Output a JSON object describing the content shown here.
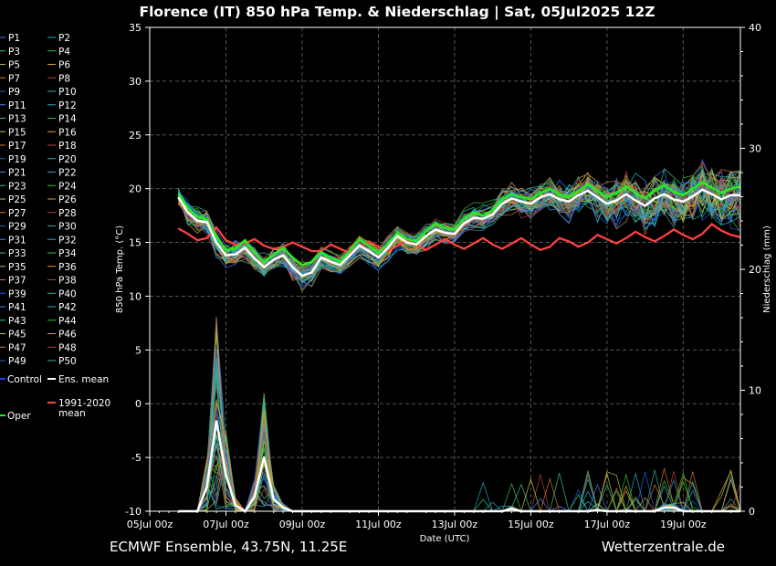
{
  "footer": {
    "left": "ECMWF Ensemble, 43.75N, 11.25E",
    "right": "Wetterzentrale.de"
  },
  "chart_data": {
    "type": "line",
    "title": "Florence  (IT)  850 hPa Temp. & Niederschlag | Sat, 05Jul2025 12Z",
    "xlabel": "Date (UTC)",
    "ylabel": "850 hPa Temp. (°C)",
    "y2label": "Niederschlag (mm)",
    "ylim": [
      -10,
      35
    ],
    "y2lim": [
      0,
      40
    ],
    "yticks": [
      -10,
      -5,
      0,
      5,
      10,
      15,
      20,
      25,
      30,
      35
    ],
    "y2ticks": [
      0,
      10,
      20,
      30,
      40
    ],
    "xlim": [
      0,
      15.5
    ],
    "xticks": [
      {
        "x": 0,
        "label": "05Jul 00z"
      },
      {
        "x": 2,
        "label": "07Jul 00z"
      },
      {
        "x": 4,
        "label": "09Jul 00z"
      },
      {
        "x": 6,
        "label": "11Jul 00z"
      },
      {
        "x": 8,
        "label": "13Jul 00z"
      },
      {
        "x": 10,
        "label": "15Jul 00z"
      },
      {
        "x": 12,
        "label": "17Jul 00z"
      },
      {
        "x": 14,
        "label": "19Jul 00z"
      }
    ],
    "grid": true,
    "legend_position": "left",
    "legend": [
      "P1",
      "P2",
      "P3",
      "P4",
      "P5",
      "P6",
      "P7",
      "P8",
      "P9",
      "P10",
      "P11",
      "P12",
      "P13",
      "P14",
      "P15",
      "P16",
      "P17",
      "P18",
      "P19",
      "P20",
      "P21",
      "P22",
      "P23",
      "P24",
      "P25",
      "P26",
      "P27",
      "P28",
      "P29",
      "P30",
      "P31",
      "P32",
      "P33",
      "P34",
      "P35",
      "P36",
      "P37",
      "P38",
      "P39",
      "P40",
      "P41",
      "P42",
      "P43",
      "P44",
      "P45",
      "P46",
      "P47",
      "P48",
      "P49",
      "P50"
    ],
    "special_legend": {
      "control": "Control",
      "ens_mean": "Ens. mean",
      "clim_mean": "1991-2020 mean",
      "oper": "Oper"
    },
    "colors": {
      "control": "#1a3cff",
      "ens_mean": "#ffffff",
      "clim_mean": "#ff4040",
      "oper": "#22ee22",
      "members": [
        "#4a7dff",
        "#28a8c8",
        "#2ec98a",
        "#38c038",
        "#c8c040",
        "#e0a030",
        "#d07838",
        "#c04040",
        "#2060e0",
        "#30b0b0"
      ]
    },
    "series_time": [
      0.75,
      1,
      1.25,
      1.5,
      1.75,
      2,
      2.25,
      2.5,
      2.75,
      3,
      3.25,
      3.5,
      3.75,
      4,
      4.25,
      4.5,
      4.75,
      5,
      5.25,
      5.5,
      5.75,
      6,
      6.25,
      6.5,
      6.75,
      7,
      7.25,
      7.5,
      7.75,
      8,
      8.25,
      8.5,
      8.75,
      9,
      9.25,
      9.5,
      9.75,
      10,
      10.25,
      10.5,
      10.75,
      11,
      11.25,
      11.5,
      11.75,
      12,
      12.25,
      12.5,
      12.75,
      13,
      13.25,
      13.5,
      13.75,
      14,
      14.25,
      14.5,
      14.75,
      15,
      15.25,
      15.5
    ],
    "series": [
      {
        "name": "Ens. mean",
        "values": [
          19.2,
          17.8,
          17.0,
          16.9,
          15.0,
          13.8,
          13.9,
          14.5,
          13.5,
          12.7,
          13.4,
          13.8,
          12.7,
          11.9,
          12.2,
          13.6,
          13.2,
          12.9,
          13.8,
          14.7,
          14.2,
          13.6,
          14.5,
          15.6,
          15.0,
          14.8,
          15.6,
          16.2,
          15.9,
          15.8,
          16.8,
          17.3,
          17.2,
          17.6,
          18.6,
          19.1,
          18.8,
          18.6,
          19.2,
          19.5,
          19.0,
          18.8,
          19.4,
          19.8,
          19.2,
          18.6,
          18.9,
          19.5,
          18.9,
          18.4,
          19.1,
          19.5,
          19.0,
          18.8,
          19.3,
          19.9,
          19.5,
          19.0,
          19.4,
          19.4
        ]
      },
      {
        "name": "Oper",
        "values": [
          19.5,
          18.2,
          17.4,
          17.1,
          15.5,
          14.3,
          14.4,
          15.2,
          14.0,
          13.2,
          13.8,
          14.5,
          13.6,
          12.9,
          13.2,
          14.1,
          13.6,
          13.2,
          14.2,
          15.3,
          14.7,
          14.0,
          14.9,
          15.9,
          15.3,
          15.1,
          16.0,
          16.8,
          16.3,
          16.2,
          17.2,
          17.8,
          17.5,
          18.0,
          19.0,
          19.5,
          19.2,
          19.0,
          19.6,
          20.0,
          19.4,
          19.2,
          19.8,
          20.4,
          19.8,
          19.2,
          19.6,
          20.2,
          19.6,
          19.1,
          19.8,
          20.3,
          19.7,
          19.4,
          20.0,
          20.6,
          20.1,
          19.6,
          20.0,
          20.2
        ]
      },
      {
        "name": "1991-2020 mean",
        "values": [
          16.3,
          15.8,
          15.2,
          15.4,
          16.4,
          15.2,
          14.8,
          14.9,
          15.3,
          14.7,
          14.4,
          14.6,
          15.0,
          14.6,
          14.2,
          14.2,
          14.8,
          14.4,
          14.0,
          14.6,
          15.1,
          14.6,
          14.2,
          14.7,
          15.2,
          14.7,
          14.3,
          14.8,
          15.3,
          14.8,
          14.4,
          14.9,
          15.4,
          14.8,
          14.4,
          14.9,
          15.4,
          14.8,
          14.3,
          14.6,
          15.4,
          15.1,
          14.6,
          15.0,
          15.7,
          15.3,
          14.9,
          15.4,
          16.0,
          15.5,
          15.1,
          15.6,
          16.2,
          15.7,
          15.3,
          15.8,
          16.7,
          16.1,
          15.7,
          15.5
        ]
      }
    ],
    "precip_series_name": "Niederschlag",
    "precip_mean": [
      0,
      0,
      0,
      2.0,
      7.5,
      3.0,
      0.5,
      0,
      1.2,
      4.5,
      1.0,
      0.3,
      0,
      0,
      0,
      0,
      0,
      0,
      0,
      0,
      0,
      0,
      0,
      0,
      0,
      0,
      0,
      0,
      0,
      0,
      0,
      0,
      0,
      0,
      0,
      0.2,
      0,
      0,
      0,
      0,
      0,
      0,
      0,
      0,
      0.1,
      0,
      0,
      0,
      0,
      0,
      0,
      0.3,
      0.3,
      0,
      0,
      0,
      0,
      0,
      0,
      0
    ]
  }
}
